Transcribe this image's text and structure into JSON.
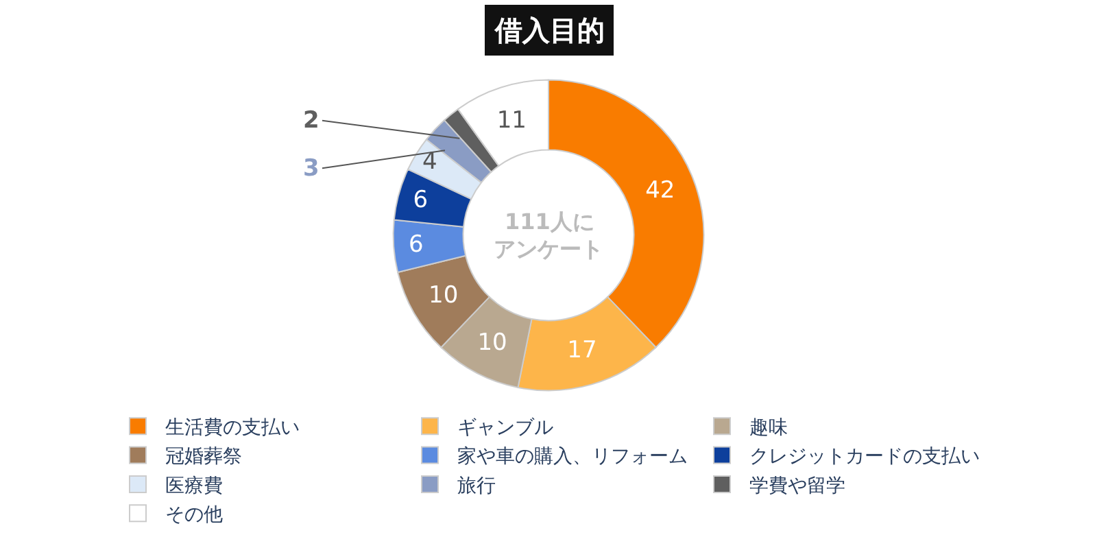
{
  "chart_data": {
    "type": "donut",
    "title": "借入目的",
    "categories": [
      "生活費の支払い",
      "ギャンブル",
      "趣味",
      "冠婚葬祭",
      "家や車の購入、リフォーム",
      "クレジットカードの支払い",
      "医療費",
      "旅行",
      "学費や留学",
      "その他"
    ],
    "values": [
      42,
      17,
      10,
      10,
      6,
      6,
      4,
      3,
      2,
      11
    ],
    "colors": [
      "#f97c00",
      "#fdb54a",
      "#b9a890",
      "#a07c5b",
      "#5b8be0",
      "#0d3f9c",
      "#dce9f7",
      "#8a9cc4",
      "#5f5f5f",
      "#ffffff"
    ],
    "annotations": [
      "111人に",
      "アンケート"
    ],
    "data_labels": true,
    "legend": "bottom"
  }
}
